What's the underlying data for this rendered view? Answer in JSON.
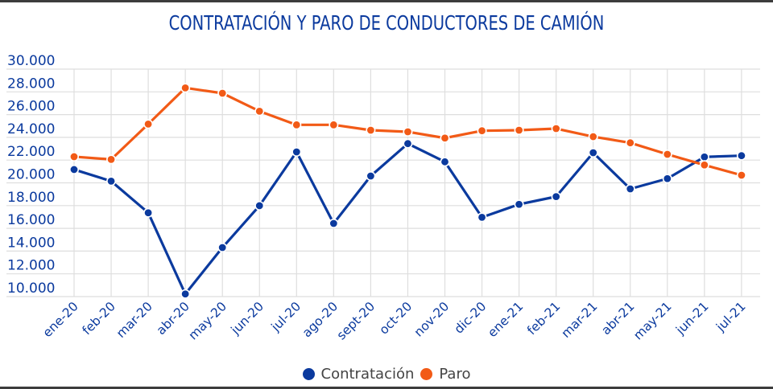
{
  "chart_data": {
    "type": "line",
    "title": "CONTRATACIÓN Y PARO DE CONDUCTORES DE CAMIÓN",
    "xlabel": "",
    "ylabel": "",
    "ylim": [
      10000,
      30000
    ],
    "yticks": [
      10000,
      12000,
      14000,
      16000,
      18000,
      20000,
      22000,
      24000,
      26000,
      28000,
      30000
    ],
    "ytick_labels": [
      "10.000",
      "12.000",
      "14.000",
      "16.000",
      "18.000",
      "20.000",
      "22.000",
      "24.000",
      "26.000",
      "28.000",
      "30.000"
    ],
    "grid": true,
    "legend_position": "bottom",
    "categories": [
      "ene-20",
      "feb-20",
      "mar-20",
      "abr-20",
      "may-20",
      "jun-20",
      "jul-20",
      "ago-20",
      "sept-20",
      "oct-20",
      "nov-20",
      "dic-20",
      "ene-21",
      "feb-21",
      "mar-21",
      "abr-21",
      "may-21",
      "jun-21",
      "jul-21"
    ],
    "series": [
      {
        "name": "Contratación",
        "color": "#0b3a9e",
        "values": [
          21170,
          20150,
          17370,
          10230,
          14310,
          17990,
          22720,
          16430,
          20600,
          23450,
          21850,
          16970,
          18110,
          18790,
          22650,
          19470,
          20370,
          22280,
          22390
        ]
      },
      {
        "name": "Paro",
        "color": "#f25a16",
        "values": [
          22300,
          22060,
          25170,
          28350,
          27880,
          26300,
          25100,
          25100,
          24630,
          24490,
          23940,
          24580,
          24630,
          24770,
          24060,
          23520,
          22510,
          21570,
          20670
        ]
      }
    ]
  }
}
